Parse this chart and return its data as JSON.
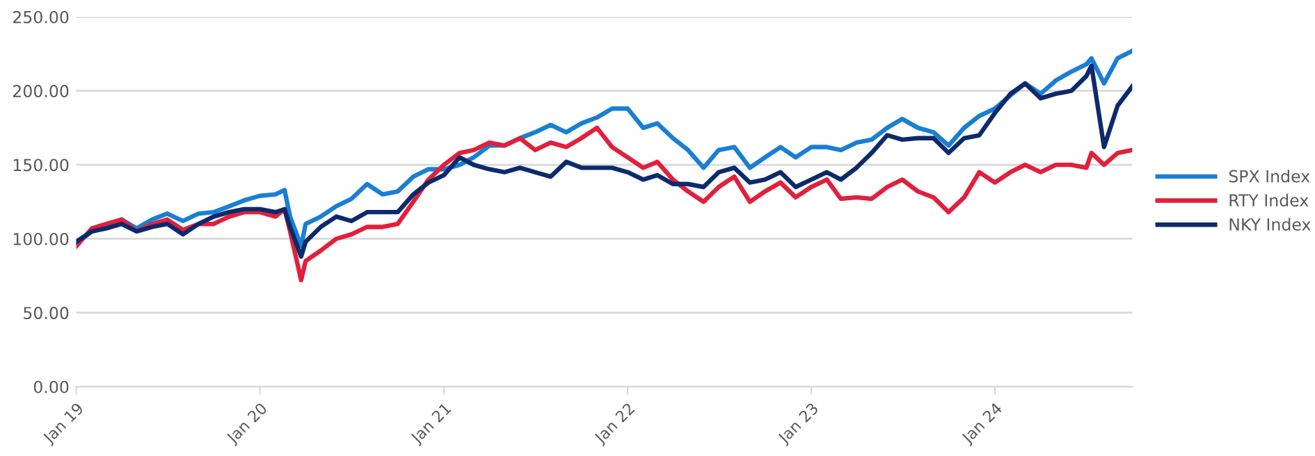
{
  "chart_data": {
    "type": "line",
    "x": [
      "2019-01-01",
      "2019-02-01",
      "2019-03-01",
      "2019-04-01",
      "2019-05-01",
      "2019-06-01",
      "2019-07-01",
      "2019-08-01",
      "2019-09-01",
      "2019-10-01",
      "2019-11-01",
      "2019-12-01",
      "2020-01-01",
      "2020-02-01",
      "2020-02-19",
      "2020-03-01",
      "2020-03-23",
      "2020-04-01",
      "2020-05-01",
      "2020-06-01",
      "2020-07-01",
      "2020-08-01",
      "2020-09-01",
      "2020-10-01",
      "2020-11-01",
      "2020-12-01",
      "2021-01-01",
      "2021-02-01",
      "2021-03-01",
      "2021-04-01",
      "2021-05-01",
      "2021-06-01",
      "2021-07-01",
      "2021-08-01",
      "2021-09-01",
      "2021-10-01",
      "2021-11-01",
      "2021-12-01",
      "2022-01-01",
      "2022-02-01",
      "2022-03-01",
      "2022-04-01",
      "2022-05-01",
      "2022-06-01",
      "2022-07-01",
      "2022-08-01",
      "2022-09-01",
      "2022-10-01",
      "2022-11-01",
      "2022-12-01",
      "2023-01-01",
      "2023-02-01",
      "2023-03-01",
      "2023-04-01",
      "2023-05-01",
      "2023-06-01",
      "2023-07-01",
      "2023-08-01",
      "2023-09-01",
      "2023-10-01",
      "2023-11-01",
      "2023-12-01",
      "2024-01-01",
      "2024-02-01",
      "2024-03-01",
      "2024-04-01",
      "2024-05-01",
      "2024-06-01",
      "2024-07-01",
      "2024-07-11",
      "2024-08-05",
      "2024-09-01",
      "2024-09-30"
    ],
    "series": [
      {
        "name": "SPX Index",
        "color": "#1a7fd4",
        "values": [
          97,
          105,
          108,
          113,
          107,
          113,
          117,
          112,
          117,
          118,
          122,
          126,
          129,
          130,
          133,
          115,
          95,
          110,
          115,
          122,
          127,
          137,
          130,
          132,
          142,
          147,
          147,
          150,
          155,
          163,
          163,
          168,
          172,
          177,
          172,
          178,
          182,
          188,
          188,
          175,
          178,
          168,
          160,
          148,
          160,
          162,
          148,
          155,
          162,
          155,
          162,
          162,
          160,
          165,
          167,
          175,
          181,
          175,
          172,
          163,
          175,
          183,
          188,
          197,
          205,
          198,
          207,
          213,
          218,
          222,
          205,
          222,
          227
        ]
      },
      {
        "name": "RTY Index",
        "color": "#e0203c",
        "values": [
          95,
          107,
          110,
          113,
          105,
          110,
          113,
          106,
          110,
          110,
          115,
          118,
          118,
          115,
          120,
          105,
          72,
          85,
          92,
          100,
          103,
          108,
          108,
          110,
          125,
          140,
          150,
          158,
          160,
          165,
          163,
          168,
          160,
          165,
          162,
          168,
          175,
          162,
          155,
          148,
          152,
          140,
          132,
          125,
          135,
          142,
          125,
          132,
          138,
          128,
          135,
          140,
          127,
          128,
          127,
          135,
          140,
          132,
          128,
          118,
          128,
          145,
          138,
          145,
          150,
          145,
          150,
          150,
          148,
          158,
          150,
          158,
          160
        ]
      },
      {
        "name": "NKY Index",
        "color": "#0d2a6b",
        "values": [
          98,
          105,
          107,
          110,
          105,
          108,
          110,
          103,
          110,
          115,
          118,
          120,
          120,
          118,
          120,
          108,
          88,
          98,
          108,
          115,
          112,
          118,
          118,
          118,
          130,
          138,
          143,
          155,
          150,
          147,
          145,
          148,
          145,
          142,
          152,
          148,
          148,
          148,
          145,
          140,
          143,
          137,
          137,
          135,
          145,
          148,
          138,
          140,
          145,
          135,
          140,
          145,
          140,
          148,
          158,
          170,
          167,
          168,
          168,
          158,
          168,
          170,
          185,
          198,
          205,
          195,
          198,
          200,
          210,
          217,
          162,
          190,
          203
        ]
      }
    ],
    "xlim": [
      "2019-01-01",
      "2024-09-30"
    ],
    "xticks": [
      {
        "value": "2019-01-01",
        "label": "Jan 19"
      },
      {
        "value": "2020-01-01",
        "label": "Jan 20"
      },
      {
        "value": "2021-01-01",
        "label": "Jan 21"
      },
      {
        "value": "2022-01-01",
        "label": "Jan 22"
      },
      {
        "value": "2023-01-01",
        "label": "Jan 23"
      },
      {
        "value": "2024-01-01",
        "label": "Jan 24"
      }
    ],
    "ylim": [
      0,
      250
    ],
    "yticks": [
      {
        "value": 0,
        "label": "0.00"
      },
      {
        "value": 50,
        "label": "50.00"
      },
      {
        "value": 100,
        "label": "100.00"
      },
      {
        "value": 150,
        "label": "150.00"
      },
      {
        "value": 200,
        "label": "200.00"
      },
      {
        "value": 250,
        "label": "250.00"
      }
    ],
    "grid": "y",
    "legend": "right",
    "marker": "none",
    "line_style": "solid"
  }
}
